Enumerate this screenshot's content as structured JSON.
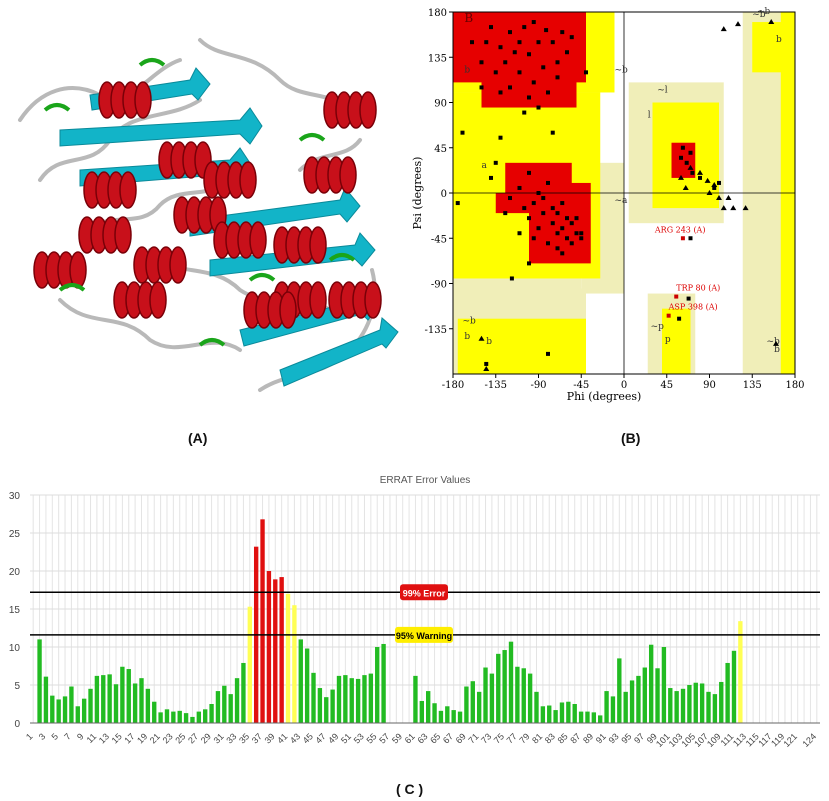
{
  "labels": {
    "a": "(A)",
    "b": "(B)",
    "c": "( C )"
  },
  "colors": {
    "helix": "#c8101a",
    "sheet": "#12b4c8",
    "coil": "#b9b9b9",
    "turn": "#1aa51a",
    "core": "#e60000",
    "allowed": "#ffff00",
    "generous": "#ffff99",
    "generous2": "#f0eeb8",
    "bar_ok": "#22bb22",
    "bar_warn": "#ffff55",
    "bar_err": "#e01010"
  },
  "chart_data": [
    {
      "type": "scatter",
      "panel": "B",
      "xlabel": "Phi (degrees)",
      "ylabel": "Psi (degrees)",
      "xlim": [
        -180,
        180
      ],
      "ylim": [
        -180,
        180
      ],
      "xticks": [
        -180,
        -135,
        -90,
        -45,
        0,
        45,
        90,
        135,
        180
      ],
      "yticks": [
        -135,
        -90,
        -45,
        0,
        45,
        90,
        135,
        180
      ],
      "region_labels": [
        "B",
        "b",
        "b",
        "~b",
        "a",
        "~a",
        "l",
        "~l",
        "~b",
        "b",
        "~b",
        "b",
        "~p",
        "p",
        "~b",
        "b",
        "~b"
      ],
      "annotations": [
        {
          "text": "ARG 243 (A)",
          "phi": 62,
          "psi": -45
        },
        {
          "text": "TRP 80 (A)",
          "phi": 55,
          "psi": -103
        },
        {
          "text": "ASP 398 (A)",
          "phi": 47,
          "psi": -122
        }
      ],
      "squares": [
        [
          -90,
          150
        ],
        [
          -82,
          162
        ],
        [
          -100,
          138
        ],
        [
          -120,
          160
        ],
        [
          -70,
          130
        ],
        [
          -110,
          120
        ],
        [
          -95,
          110
        ],
        [
          -130,
          145
        ],
        [
          -75,
          150
        ],
        [
          -140,
          165
        ],
        [
          -65,
          160
        ],
        [
          -105,
          165
        ],
        [
          -115,
          140
        ],
        [
          -85,
          125
        ],
        [
          -125,
          130
        ],
        [
          -95,
          170
        ],
        [
          -60,
          140
        ],
        [
          -135,
          120
        ],
        [
          -80,
          100
        ],
        [
          -100,
          95
        ],
        [
          -120,
          105
        ],
        [
          -145,
          150
        ],
        [
          -70,
          115
        ],
        [
          -90,
          85
        ],
        [
          -110,
          150
        ],
        [
          -55,
          155
        ],
        [
          -130,
          100
        ],
        [
          -150,
          130
        ],
        [
          -160,
          150
        ],
        [
          -105,
          80
        ],
        [
          -40,
          120
        ],
        [
          -100,
          20
        ],
        [
          -95,
          -10
        ],
        [
          -85,
          -20
        ],
        [
          -75,
          -30
        ],
        [
          -70,
          -40
        ],
        [
          -65,
          -35
        ],
        [
          -60,
          -45
        ],
        [
          -80,
          -50
        ],
        [
          -90,
          -35
        ],
        [
          -100,
          -25
        ],
        [
          -55,
          -30
        ],
        [
          -50,
          -40
        ],
        [
          -70,
          -55
        ],
        [
          -85,
          -5
        ],
        [
          -110,
          5
        ],
        [
          -75,
          -15
        ],
        [
          -65,
          -60
        ],
        [
          -95,
          -45
        ],
        [
          -60,
          -25
        ],
        [
          -105,
          -15
        ],
        [
          -80,
          10
        ],
        [
          -120,
          -5
        ],
        [
          -55,
          -50
        ],
        [
          -70,
          -20
        ],
        [
          -45,
          -45
        ],
        [
          -90,
          0
        ],
        [
          -110,
          -40
        ],
        [
          -65,
          -10
        ],
        [
          -50,
          -25
        ],
        [
          -175,
          -10
        ],
        [
          -140,
          15
        ],
        [
          -135,
          30
        ],
        [
          -80,
          -160
        ],
        [
          -145,
          -170
        ],
        [
          -45,
          -40
        ],
        [
          -125,
          -20
        ],
        [
          -150,
          105
        ],
        [
          62,
          45
        ],
        [
          66,
          30
        ],
        [
          70,
          40
        ],
        [
          60,
          35
        ],
        [
          72,
          20
        ],
        [
          80,
          15
        ],
        [
          95,
          5
        ],
        [
          100,
          10
        ],
        [
          70,
          -45
        ],
        [
          68,
          -105
        ],
        [
          58,
          -125
        ],
        [
          -130,
          55
        ],
        [
          -100,
          -70
        ],
        [
          -75,
          60
        ],
        [
          -170,
          60
        ],
        [
          -118,
          -85
        ]
      ],
      "triangles": [
        [
          100,
          -5
        ],
        [
          105,
          -15
        ],
        [
          110,
          -5
        ],
        [
          95,
          8
        ],
        [
          90,
          0
        ],
        [
          115,
          -15
        ],
        [
          70,
          25
        ],
        [
          60,
          15
        ],
        [
          65,
          5
        ],
        [
          80,
          20
        ],
        [
          88,
          12
        ],
        [
          120,
          168
        ],
        [
          105,
          163
        ],
        [
          128,
          -15
        ],
        [
          -150,
          -145
        ],
        [
          -145,
          -175
        ],
        [
          160,
          -150
        ],
        [
          155,
          170
        ]
      ]
    },
    {
      "type": "bar",
      "panel": "C",
      "title": "ERRAT Error Values",
      "ylim": [
        0,
        30
      ],
      "yticks": [
        0,
        5,
        10,
        15,
        20,
        25,
        30
      ],
      "x_tick_labels": [
        "1",
        "3",
        "5",
        "7",
        "9",
        "11",
        "13",
        "15",
        "17",
        "19",
        "21",
        "23",
        "25",
        "27",
        "29",
        "31",
        "33",
        "35",
        "37",
        "39",
        "41",
        "43",
        "45",
        "47",
        "49",
        "51",
        "53",
        "55",
        "57",
        "59",
        "61",
        "63",
        "65",
        "67",
        "69",
        "71",
        "73",
        "75",
        "77",
        "79",
        "81",
        "83",
        "85",
        "87",
        "89",
        "91",
        "93",
        "95",
        "97",
        "99",
        "101",
        "103",
        "105",
        "107",
        "109",
        "111",
        "113",
        "115",
        "117",
        "119",
        "121",
        "124"
      ],
      "thresholds": [
        {
          "label": "99% Error",
          "value": 17.2
        },
        {
          "label": "95% Warning",
          "value": 11.6
        }
      ],
      "values": [
        0,
        11,
        6.1,
        3.6,
        3.1,
        3.5,
        4.8,
        2.2,
        3.2,
        4.5,
        6.2,
        6.3,
        6.4,
        5.1,
        7.4,
        7.1,
        5.2,
        5.9,
        4.5,
        2.8,
        1.4,
        1.8,
        1.5,
        1.6,
        1.3,
        0.8,
        1.5,
        1.8,
        2.5,
        4.2,
        4.9,
        3.8,
        5.9,
        7.9,
        15.3,
        23.2,
        26.8,
        20,
        18.9,
        19.2,
        17,
        15.5,
        11,
        9.8,
        6.6,
        4.6,
        3.4,
        4.4,
        6.2,
        6.3,
        5.9,
        5.8,
        6.3,
        6.5,
        10,
        10.4,
        0,
        0,
        0,
        0,
        6.2,
        2.9,
        4.2,
        2.6,
        1.6,
        2.2,
        1.7,
        1.5,
        4.8,
        5.5,
        4.1,
        7.3,
        6.5,
        9.1,
        9.6,
        10.7,
        7.4,
        7.2,
        6.5,
        4.1,
        2.2,
        2.3,
        1.7,
        2.7,
        2.8,
        2.5,
        1.5,
        1.5,
        1.4,
        1,
        4.2,
        3.5,
        8.5,
        4.1,
        5.6,
        6.2,
        7.3,
        10.3,
        7.2,
        10,
        4.6,
        4.2,
        4.5,
        5,
        5.3,
        5.2,
        4.1,
        3.8,
        5.4,
        7.9,
        9.5,
        13.4,
        0,
        0,
        0,
        0,
        0,
        0,
        0,
        0,
        0,
        0,
        0,
        0
      ]
    }
  ]
}
